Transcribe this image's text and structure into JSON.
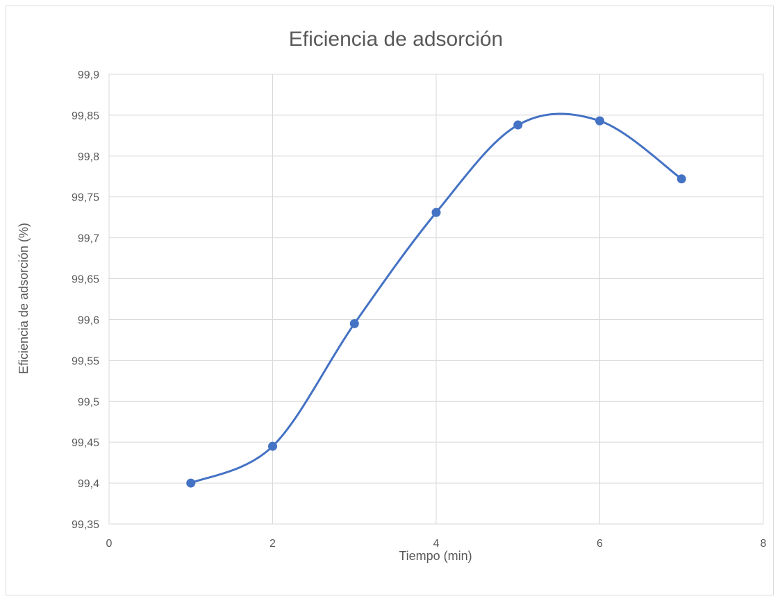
{
  "chart_data": {
    "type": "scatter",
    "title": "Eficiencia de adsorción",
    "xlabel": "Tiempo (min)",
    "ylabel": "Eficiencia de adsorción (%)",
    "xlim": [
      0,
      8
    ],
    "ylim": [
      99.35,
      99.9
    ],
    "x_ticks": [
      "0",
      "2",
      "4",
      "6",
      "8"
    ],
    "y_ticks": [
      "99,35",
      "99,4",
      "99,45",
      "99,5",
      "99,55",
      "99,6",
      "99,65",
      "99,7",
      "99,75",
      "99,8",
      "99,85",
      "99,9"
    ],
    "grid": true,
    "smooth_line": true,
    "series": [
      {
        "color": "#4472C4",
        "x": [
          1,
          2,
          3,
          4,
          5,
          6,
          7
        ],
        "y": [
          99.4,
          99.445,
          99.595,
          99.731,
          99.838,
          99.843,
          99.772
        ]
      }
    ]
  }
}
